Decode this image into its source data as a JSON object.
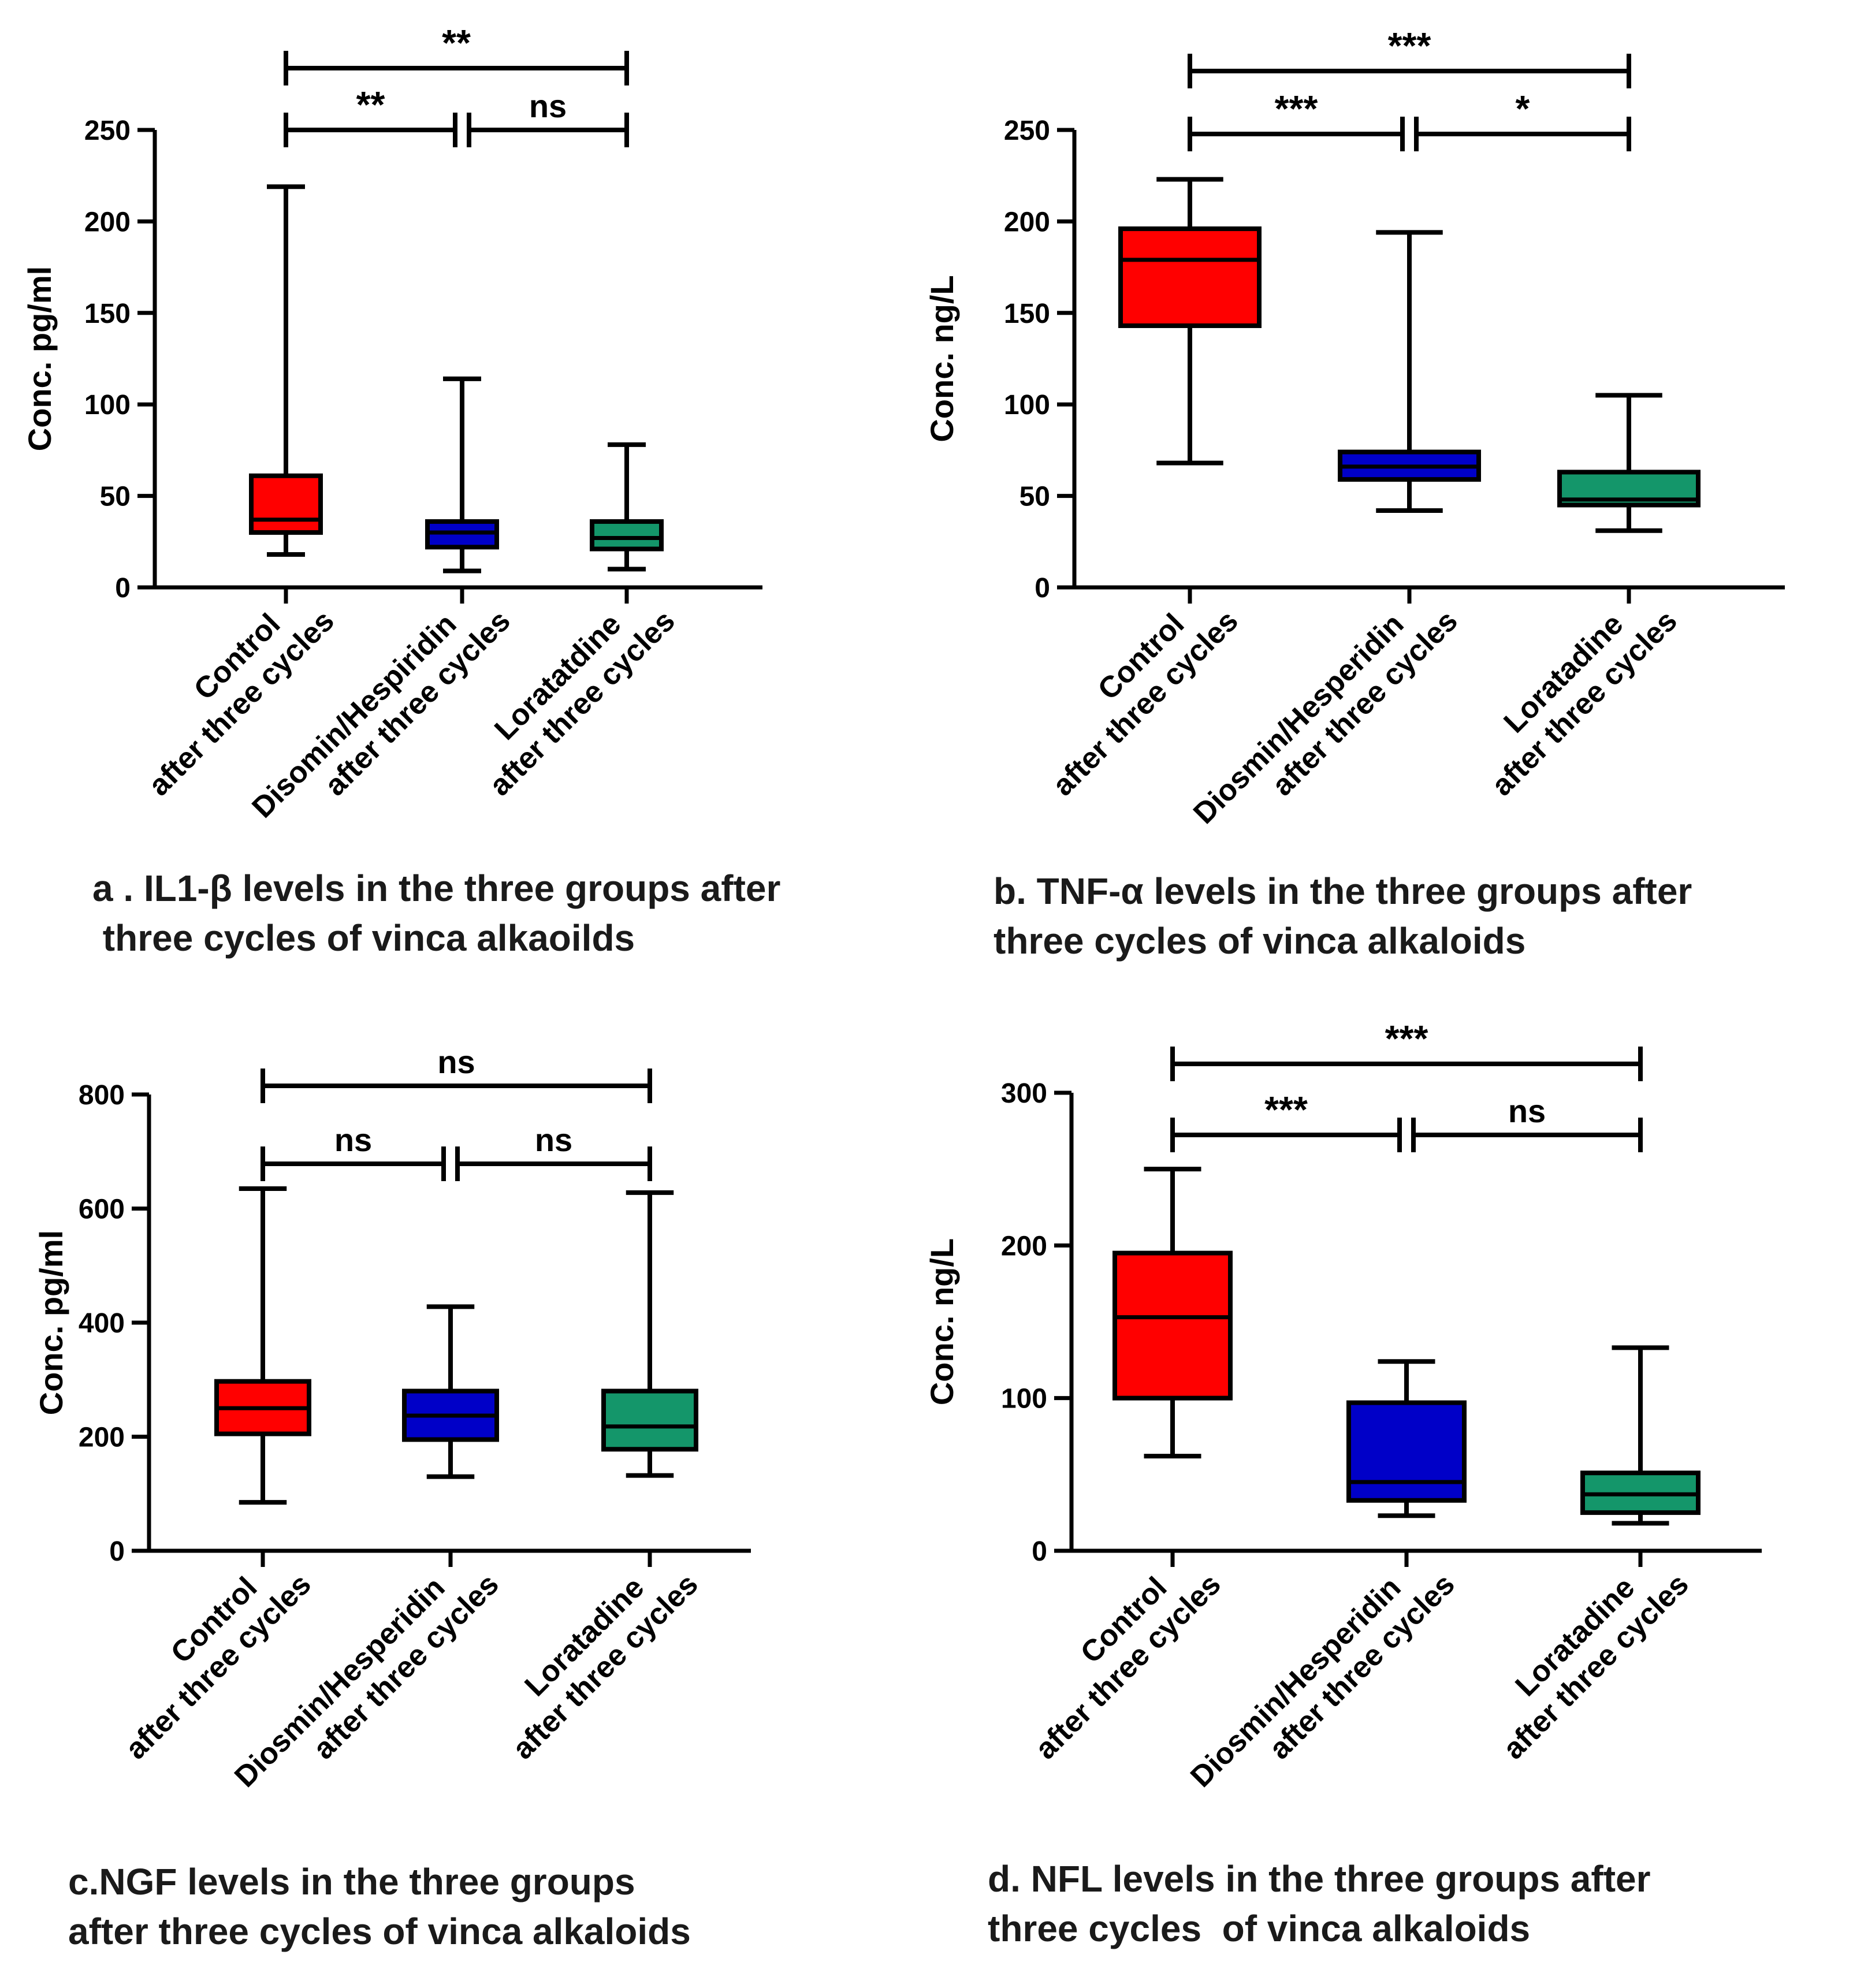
{
  "colors": {
    "Control": "#ff0000",
    "Diosmin": "#0000c8",
    "Loratadine": "#14966a",
    "line": "#000000"
  },
  "chart_data": [
    {
      "type": "box",
      "panel": "a",
      "ylabel": "Conc. pg/ml",
      "ylim": [
        0,
        250
      ],
      "yticks": [
        0,
        50,
        100,
        150,
        200,
        250
      ],
      "categories": [
        [
          "Control",
          "after three cycles"
        ],
        [
          "Disomin/Hespiridin",
          "after three cycles"
        ],
        [
          "Loratatdine",
          "after three cycles"
        ]
      ],
      "series": [
        {
          "name": "Control",
          "color": "#ff0000",
          "min": 18,
          "q1": 30,
          "median": 37,
          "q3": 61,
          "max": 219
        },
        {
          "name": "Diosmin/Hesperidin",
          "color": "#0000c8",
          "min": 9,
          "q1": 22,
          "median": 30,
          "q3": 36,
          "max": 114
        },
        {
          "name": "Loratadine",
          "color": "#14966a",
          "min": 10,
          "q1": 21,
          "median": 27,
          "q3": 36,
          "max": 78
        }
      ],
      "brackets": [
        {
          "from": 0,
          "to": 2,
          "label": "**",
          "level": 2
        },
        {
          "from": 0,
          "to": 1,
          "label": "**",
          "level": 1
        },
        {
          "from": 1,
          "to": 2,
          "label": "ns",
          "level": 1
        }
      ],
      "caption": [
        "a . IL1-β levels in the three groups after",
        " three cycles of vinca alkaoilds"
      ]
    },
    {
      "type": "box",
      "panel": "b",
      "ylabel": "Conc. ng/L",
      "ylim": [
        0,
        250
      ],
      "yticks": [
        0,
        50,
        100,
        150,
        200,
        250
      ],
      "categories": [
        [
          "Control",
          "after three cycles"
        ],
        [
          "Diosmin/Hesperidin",
          "after three cycles"
        ],
        [
          "Loratadine",
          "after three cycles"
        ]
      ],
      "series": [
        {
          "name": "Control",
          "color": "#ff0000",
          "min": 68,
          "q1": 143,
          "median": 179,
          "q3": 196,
          "max": 223
        },
        {
          "name": "Diosmin/Hesperidin",
          "color": "#0000c8",
          "min": 42,
          "q1": 59,
          "median": 66,
          "q3": 74,
          "max": 194
        },
        {
          "name": "Loratadine",
          "color": "#14966a",
          "min": 31,
          "q1": 45,
          "median": 48,
          "q3": 63,
          "max": 105
        }
      ],
      "brackets": [
        {
          "from": 0,
          "to": 2,
          "label": "***",
          "level": 2
        },
        {
          "from": 0,
          "to": 1,
          "label": "***",
          "level": 1
        },
        {
          "from": 1,
          "to": 2,
          "label": "*",
          "level": 1
        }
      ],
      "caption": [
        "b. TNF-α levels in the three groups after",
        "three cycles of vinca alkaloids"
      ]
    },
    {
      "type": "box",
      "panel": "c",
      "ylabel": "Conc. pg/ml",
      "ylim": [
        0,
        800
      ],
      "yticks": [
        0,
        200,
        400,
        600,
        800
      ],
      "categories": [
        [
          "Control",
          "after three cycles"
        ],
        [
          "Diosmin/Hesperidin",
          "after three cycles"
        ],
        [
          "Loratadine",
          "after three cycles"
        ]
      ],
      "series": [
        {
          "name": "Control",
          "color": "#ff0000",
          "min": 85,
          "q1": 205,
          "median": 250,
          "q3": 297,
          "max": 635
        },
        {
          "name": "Diosmin/Hesperidin",
          "color": "#0000c8",
          "min": 130,
          "q1": 195,
          "median": 237,
          "q3": 280,
          "max": 428
        },
        {
          "name": "Loratadine",
          "color": "#14966a",
          "min": 132,
          "q1": 178,
          "median": 218,
          "q3": 280,
          "max": 628
        }
      ],
      "brackets": [
        {
          "from": 0,
          "to": 2,
          "label": "ns",
          "level": 2
        },
        {
          "from": 0,
          "to": 1,
          "label": "ns",
          "level": 1
        },
        {
          "from": 1,
          "to": 2,
          "label": "ns",
          "level": 1
        }
      ],
      "caption": [
        "c.NGF levels in the three groups",
        "after three cycles of vinca alkaloids"
      ]
    },
    {
      "type": "box",
      "panel": "d",
      "ylabel": "Conc. ng/L",
      "ylim": [
        0,
        300
      ],
      "yticks": [
        0,
        100,
        200,
        300
      ],
      "categories": [
        [
          "Control",
          "after three cycles"
        ],
        [
          "Diosmin/Hesperidin",
          "after three cycles"
        ],
        [
          "Loratadine",
          "after three cycles"
        ]
      ],
      "series": [
        {
          "name": "Control",
          "color": "#ff0000",
          "min": 62,
          "q1": 100,
          "median": 153,
          "q3": 195,
          "max": 250
        },
        {
          "name": "Diosmin/Hesperidin",
          "color": "#0000c8",
          "min": 23,
          "q1": 33,
          "median": 45,
          "q3": 97,
          "max": 124
        },
        {
          "name": "Loratadine",
          "color": "#14966a",
          "min": 18,
          "q1": 25,
          "median": 37,
          "q3": 51,
          "max": 133
        }
      ],
      "brackets": [
        {
          "from": 0,
          "to": 2,
          "label": "***",
          "level": 2
        },
        {
          "from": 0,
          "to": 1,
          "label": "***",
          "level": 1
        },
        {
          "from": 1,
          "to": 2,
          "label": "ns",
          "level": 1
        }
      ],
      "caption": [
        "d. NFL levels in the three groups after",
        "three cycles  of vinca alkaloids"
      ]
    }
  ]
}
